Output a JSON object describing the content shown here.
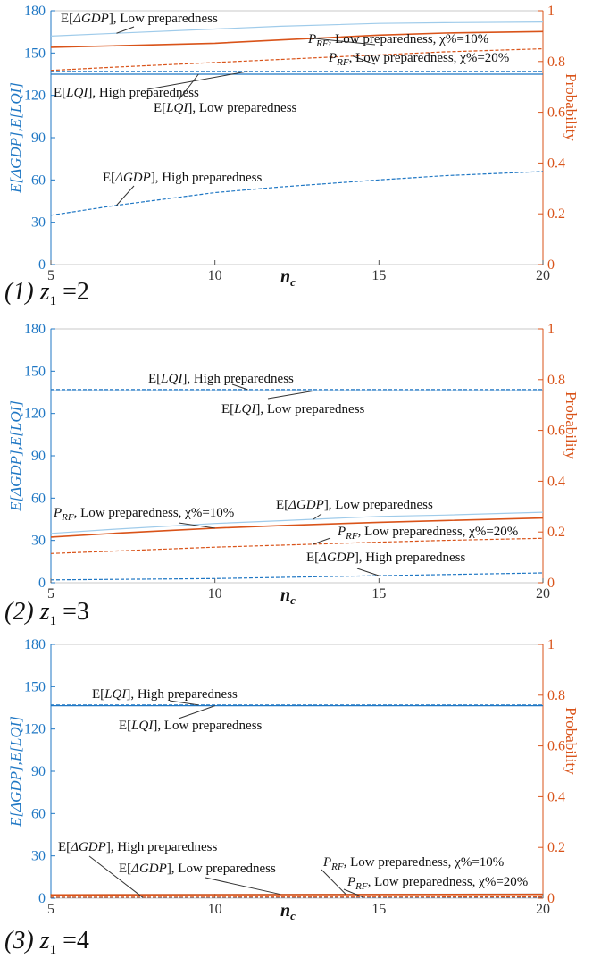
{
  "chart_data": [
    {
      "type": "line",
      "caption": "(1)  z1 =2",
      "xlabel": "nc",
      "ylabel_left": "E[ΔGDP],E[LQI]",
      "ylabel_right": "Probability",
      "xlim": [
        5,
        20
      ],
      "ylim_left": [
        0,
        180
      ],
      "ylim_right": [
        0,
        1
      ],
      "x_ticks": [
        "5",
        "10",
        "15",
        "20"
      ],
      "y_ticks_left": [
        "0",
        "30",
        "60",
        "90",
        "120",
        "150",
        "180"
      ],
      "y_ticks_right": [
        "0",
        "0.2",
        "0.4",
        "0.6",
        "0.8",
        "1"
      ],
      "grid": false,
      "series": [
        {
          "name": "E[ΔGDP], Low preparedness",
          "axis": "left",
          "style": "solid",
          "color": "#9fcbea",
          "x": [
            5,
            7,
            10,
            12,
            15,
            17,
            20
          ],
          "values": [
            162,
            164,
            167,
            169,
            171,
            171.5,
            172
          ]
        },
        {
          "name": "E[ΔGDP], High preparedness",
          "axis": "left",
          "style": "dashed",
          "color": "#1f77c4",
          "x": [
            5,
            7,
            10,
            12,
            15,
            17,
            20
          ],
          "values": [
            35,
            42,
            51,
            55,
            60,
            63,
            66
          ]
        },
        {
          "name": "E[LQI], High preparedness",
          "axis": "left",
          "style": "dashed",
          "color": "#1f77c4",
          "x": [
            5,
            20
          ],
          "values": [
            137,
            137
          ]
        },
        {
          "name": "E[LQI], Low preparedness",
          "axis": "left",
          "style": "solid",
          "color": "#1f77c4",
          "x": [
            5,
            20
          ],
          "values": [
            135,
            135
          ]
        },
        {
          "name": "PRF, Low preparedness, χ%=10%",
          "axis": "right",
          "style": "solid",
          "color": "#d95319",
          "x": [
            5,
            7,
            10,
            12,
            15,
            17,
            20
          ],
          "values": [
            0.856,
            0.862,
            0.872,
            0.885,
            0.904,
            0.912,
            0.918
          ]
        },
        {
          "name": "PRF, Low preparedness, χ%=20%",
          "axis": "right",
          "style": "dashed",
          "color": "#d95319",
          "x": [
            5,
            7,
            10,
            12,
            15,
            17,
            20
          ],
          "values": [
            0.765,
            0.778,
            0.796,
            0.808,
            0.826,
            0.838,
            0.85
          ]
        }
      ],
      "annotations": [
        {
          "text": "E[ΔGDP], Low preparedness",
          "series": 0
        },
        {
          "text": "PRF, Low preparedness, χ%=10%",
          "series": 4
        },
        {
          "text": "PRF, Low preparedness, χ%=20%",
          "series": 5
        },
        {
          "text": "E[LQI], High preparedness",
          "series": 2
        },
        {
          "text": "E[LQI], Low preparedness",
          "series": 3
        },
        {
          "text": "E[ΔGDP], High preparedness",
          "series": 1
        }
      ]
    },
    {
      "type": "line",
      "caption": "(2)  z1 =3",
      "xlabel": "nc",
      "ylabel_left": "E[ΔGDP],E[LQI]",
      "ylabel_right": "Probability",
      "xlim": [
        5,
        20
      ],
      "ylim_left": [
        0,
        180
      ],
      "ylim_right": [
        0,
        1
      ],
      "x_ticks": [
        "5",
        "10",
        "15",
        "20"
      ],
      "y_ticks_left": [
        "0",
        "30",
        "60",
        "90",
        "120",
        "150",
        "180"
      ],
      "y_ticks_right": [
        "0",
        "0.2",
        "0.4",
        "0.6",
        "0.8",
        "1"
      ],
      "grid": false,
      "series": [
        {
          "name": "E[LQI], High preparedness",
          "axis": "left",
          "style": "dashed",
          "color": "#1f77c4",
          "x": [
            5,
            20
          ],
          "values": [
            137,
            137
          ]
        },
        {
          "name": "E[LQI], Low preparedness",
          "axis": "left",
          "style": "solid",
          "color": "#1f77c4",
          "x": [
            5,
            20
          ],
          "values": [
            136,
            136
          ]
        },
        {
          "name": "E[ΔGDP], Low preparedness",
          "axis": "left",
          "style": "solid",
          "color": "#9fcbea",
          "x": [
            5,
            7,
            10,
            12,
            15,
            17,
            20
          ],
          "values": [
            35,
            38,
            42,
            44,
            47,
            48,
            50
          ]
        },
        {
          "name": "E[ΔGDP], High preparedness",
          "axis": "left",
          "style": "dashed",
          "color": "#1f77c4",
          "x": [
            5,
            10,
            15,
            20
          ],
          "values": [
            2,
            3,
            5,
            7
          ]
        },
        {
          "name": "PRF, Low preparedness, χ%=10%",
          "axis": "right",
          "style": "solid",
          "color": "#d95319",
          "x": [
            5,
            7,
            10,
            12,
            15,
            17,
            20
          ],
          "values": [
            0.18,
            0.195,
            0.215,
            0.225,
            0.238,
            0.245,
            0.255
          ]
        },
        {
          "name": "PRF, Low preparedness, χ%=20%",
          "axis": "right",
          "style": "dashed",
          "color": "#d95319",
          "x": [
            5,
            7,
            10,
            12,
            15,
            17,
            20
          ],
          "values": [
            0.115,
            0.125,
            0.14,
            0.148,
            0.16,
            0.167,
            0.175
          ]
        }
      ],
      "annotations": [
        {
          "text": "E[LQI], High preparedness",
          "series": 0
        },
        {
          "text": "E[LQI], Low preparedness",
          "series": 1
        },
        {
          "text": "E[ΔGDP], Low preparedness",
          "series": 2
        },
        {
          "text": "PRF, Low preparedness, χ%=10%",
          "series": 4
        },
        {
          "text": "PRF, Low preparedness, χ%=20%",
          "series": 5
        },
        {
          "text": "E[ΔGDP], High preparedness",
          "series": 3
        }
      ]
    },
    {
      "type": "line",
      "caption": "(3)  z1 =4",
      "xlabel": "nc",
      "ylabel_left": "E[ΔGDP],E[LQI]",
      "ylabel_right": "Probability",
      "xlim": [
        5,
        20
      ],
      "ylim_left": [
        0,
        180
      ],
      "ylim_right": [
        0,
        1
      ],
      "x_ticks": [
        "5",
        "10",
        "15",
        "20"
      ],
      "y_ticks_left": [
        "0",
        "30",
        "60",
        "90",
        "120",
        "150",
        "180"
      ],
      "y_ticks_right": [
        "0",
        "0.2",
        "0.4",
        "0.6",
        "0.8",
        "1"
      ],
      "grid": false,
      "series": [
        {
          "name": "E[LQI], High preparedness",
          "axis": "left",
          "style": "dashed",
          "color": "#1f77c4",
          "x": [
            5,
            20
          ],
          "values": [
            137,
            137
          ]
        },
        {
          "name": "E[LQI], Low preparedness",
          "axis": "left",
          "style": "solid",
          "color": "#1f77c4",
          "x": [
            5,
            20
          ],
          "values": [
            136.5,
            136.5
          ]
        },
        {
          "name": "E[ΔGDP], High preparedness",
          "axis": "left",
          "style": "dashed",
          "color": "#1f77c4",
          "x": [
            5,
            20
          ],
          "values": [
            0.5,
            0.6
          ]
        },
        {
          "name": "E[ΔGDP], Low preparedness",
          "axis": "left",
          "style": "solid",
          "color": "#9fcbea",
          "x": [
            5,
            20
          ],
          "values": [
            2.5,
            3
          ]
        },
        {
          "name": "PRF, Low preparedness, χ%=10%",
          "axis": "right",
          "style": "solid",
          "color": "#d95319",
          "x": [
            5,
            20
          ],
          "values": [
            0.013,
            0.015
          ]
        },
        {
          "name": "PRF, Low preparedness, χ%=20%",
          "axis": "right",
          "style": "dashed",
          "color": "#d95319",
          "x": [
            5,
            20
          ],
          "values": [
            0.004,
            0.005
          ]
        }
      ],
      "annotations": [
        {
          "text": "E[LQI], High preparedness",
          "series": 0
        },
        {
          "text": "E[LQI], Low preparedness",
          "series": 1
        },
        {
          "text": "E[ΔGDP], High preparedness",
          "series": 2
        },
        {
          "text": "E[ΔGDP], Low preparedness",
          "series": 3
        },
        {
          "text": "PRF, Low preparedness, χ%=10%",
          "series": 4
        },
        {
          "text": "PRF, Low preparedness, χ%=20%",
          "series": 5
        }
      ]
    }
  ]
}
